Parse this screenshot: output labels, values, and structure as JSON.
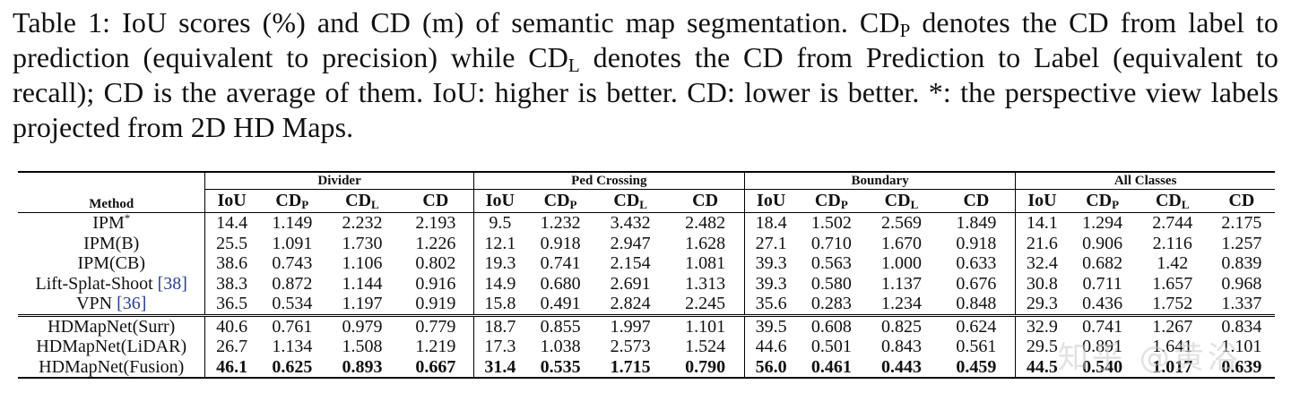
{
  "caption": {
    "table_label": "Table 1:",
    "p1": " IoU scores (%) and CD (m) of semantic map segmentation. CD",
    "sub1": "P",
    "p2": " denotes the CD from label to prediction (equivalent to precision) while CD",
    "sub2": "L",
    "p3": " denotes the CD from Prediction to Label (equivalent to recall); CD is the average of them. IoU: higher is better. CD: lower is better. *: the perspective view labels projected from 2D HD Maps."
  },
  "table": {
    "method_header": "Method",
    "groups": [
      "Divider",
      "Ped Crossing",
      "Boundary",
      "All Classes"
    ],
    "metric_headers": [
      {
        "main": "IoU",
        "sub": ""
      },
      {
        "main": "CD",
        "sub": "P"
      },
      {
        "main": "CD",
        "sub": "L"
      },
      {
        "main": "CD",
        "sub": ""
      }
    ],
    "rows": [
      {
        "method": "IPM",
        "sup": "*",
        "cite": "",
        "values": [
          "14.4",
          "1.149",
          "2.232",
          "2.193",
          "9.5",
          "1.232",
          "3.432",
          "2.482",
          "18.4",
          "1.502",
          "2.569",
          "1.849",
          "14.1",
          "1.294",
          "2.744",
          "2.175"
        ]
      },
      {
        "method": "IPM(B)",
        "sup": "",
        "cite": "",
        "values": [
          "25.5",
          "1.091",
          "1.730",
          "1.226",
          "12.1",
          "0.918",
          "2.947",
          "1.628",
          "27.1",
          "0.710",
          "1.670",
          "0.918",
          "21.6",
          "0.906",
          "2.116",
          "1.257"
        ]
      },
      {
        "method": "IPM(CB)",
        "sup": "",
        "cite": "",
        "values": [
          "38.6",
          "0.743",
          "1.106",
          "0.802",
          "19.3",
          "0.741",
          "2.154",
          "1.081",
          "39.3",
          "0.563",
          "1.000",
          "0.633",
          "32.4",
          "0.682",
          "1.42",
          "0.839"
        ]
      },
      {
        "method": "Lift-Splat-Shoot ",
        "sup": "",
        "cite": "[38]",
        "values": [
          "38.3",
          "0.872",
          "1.144",
          "0.916",
          "14.9",
          "0.680",
          "2.691",
          "1.313",
          "39.3",
          "0.580",
          "1.137",
          "0.676",
          "30.8",
          "0.711",
          "1.657",
          "0.968"
        ]
      },
      {
        "method": "VPN ",
        "sup": "",
        "cite": "[36]",
        "values": [
          "36.5",
          "0.534",
          "1.197",
          "0.919",
          "15.8",
          "0.491",
          "2.824",
          "2.245",
          "35.6",
          "0.283",
          "1.234",
          "0.848",
          "29.3",
          "0.436",
          "1.752",
          "1.337"
        ]
      },
      {
        "method": "HDMapNet(Surr)",
        "sup": "",
        "cite": "",
        "values": [
          "40.6",
          "0.761",
          "0.979",
          "0.779",
          "18.7",
          "0.855",
          "1.997",
          "1.101",
          "39.5",
          "0.608",
          "0.825",
          "0.624",
          "32.9",
          "0.741",
          "1.267",
          "0.834"
        ]
      },
      {
        "method": "HDMapNet(LiDAR)",
        "sup": "",
        "cite": "",
        "values": [
          "26.7",
          "1.134",
          "1.508",
          "1.219",
          "17.3",
          "1.038",
          "2.573",
          "1.524",
          "44.6",
          "0.501",
          "0.843",
          "0.561",
          "29.5",
          "0.891",
          "1.641",
          "1.101"
        ]
      },
      {
        "method": "HDMapNet(Fusion)",
        "sup": "",
        "cite": "",
        "values": [
          "46.1",
          "0.625",
          "0.893",
          "0.667",
          "31.4",
          "0.535",
          "1.715",
          "0.790",
          "56.0",
          "0.461",
          "0.443",
          "0.459",
          "44.5",
          "0.540",
          "1.017",
          "0.639"
        ]
      }
    ]
  },
  "watermark": "知乎 @黄浴"
}
